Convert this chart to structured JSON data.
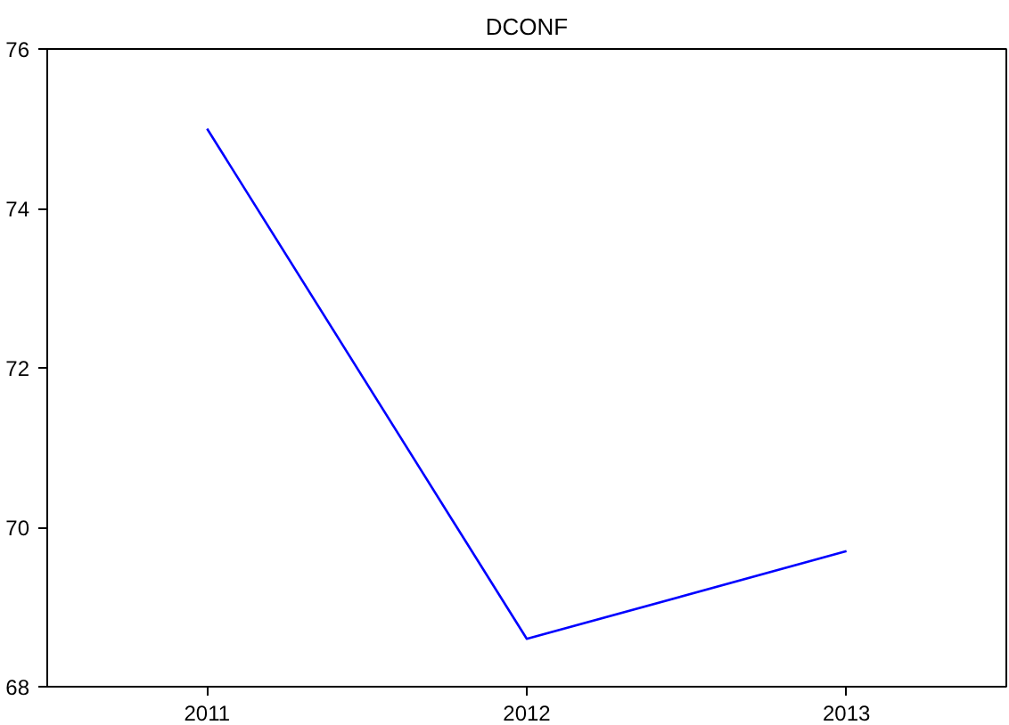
{
  "chart_data": {
    "type": "line",
    "title": "DCONF",
    "categories": [
      "2011",
      "2012",
      "2013"
    ],
    "series": [
      {
        "color": "#0000ff",
        "values": [
          75.0,
          68.6,
          69.7
        ]
      }
    ],
    "ylim": [
      68,
      76
    ],
    "yticks": [
      68,
      70,
      72,
      74,
      76
    ],
    "grid": false,
    "marker": "none",
    "line_style": "solid"
  }
}
